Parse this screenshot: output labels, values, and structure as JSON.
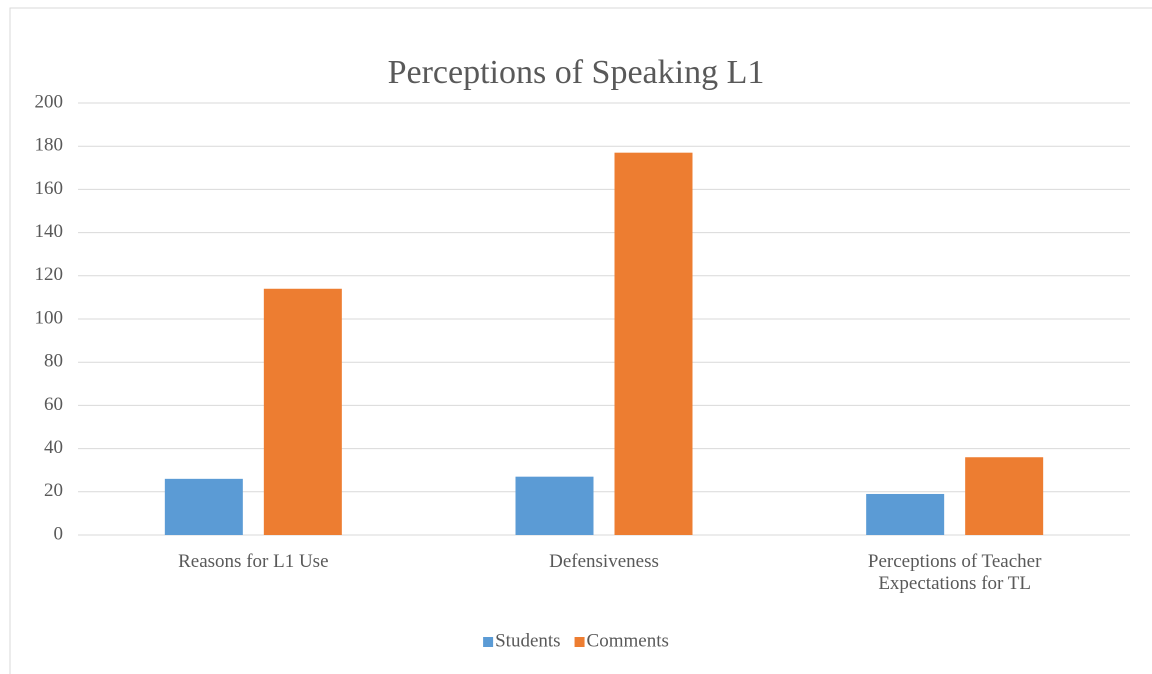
{
  "chart_data": {
    "type": "bar",
    "title": "Perceptions of Speaking L1",
    "categories": [
      "Reasons for L1 Use",
      "Defensiveness",
      "Perceptions of Teacher Expectations for TL"
    ],
    "series": [
      {
        "name": "Students",
        "color": "#5b9bd5",
        "values": [
          26,
          27,
          19
        ]
      },
      {
        "name": "Comments",
        "color": "#ed7d31",
        "values": [
          114,
          177,
          36
        ]
      }
    ],
    "ylim": [
      0,
      200
    ],
    "yticks": [
      0,
      20,
      40,
      60,
      80,
      100,
      120,
      140,
      160,
      180,
      200
    ],
    "grid": true,
    "legend": "bottom"
  }
}
